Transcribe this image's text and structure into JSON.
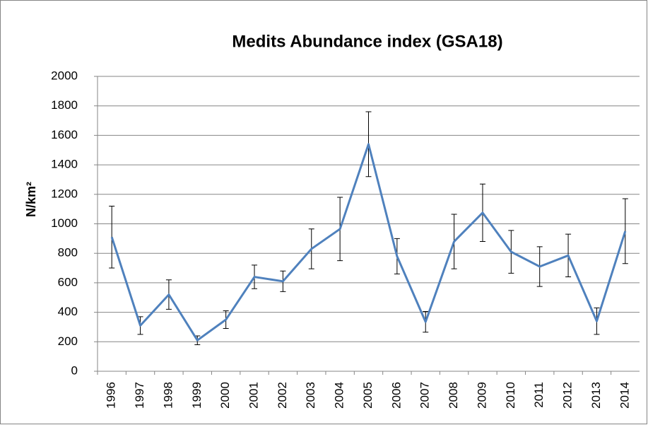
{
  "chart_data": {
    "type": "line",
    "title": "Medits Abundance index (GSA18)",
    "y_label": "N/km²",
    "categories": [
      "1996",
      "1997",
      "1998",
      "1999",
      "2000",
      "2001",
      "2002",
      "2003",
      "2004",
      "2005",
      "2006",
      "2007",
      "2008",
      "2009",
      "2010",
      "2011",
      "2012",
      "2013",
      "2014"
    ],
    "series": [
      {
        "name": "Abundance",
        "color": "#4f81bd",
        "values": [
          910,
          310,
          520,
          210,
          350,
          640,
          610,
          830,
          965,
          1540,
          780,
          335,
          880,
          1075,
          810,
          710,
          785,
          340,
          950
        ],
        "errors": [
          210,
          60,
          100,
          30,
          60,
          80,
          70,
          135,
          215,
          220,
          120,
          70,
          185,
          195,
          145,
          135,
          145,
          90,
          220
        ]
      }
    ],
    "ylim": [
      0,
      2000
    ],
    "yticks": [
      0,
      200,
      400,
      600,
      800,
      1000,
      1200,
      1400,
      1600,
      1800,
      2000
    ],
    "grid": true
  }
}
